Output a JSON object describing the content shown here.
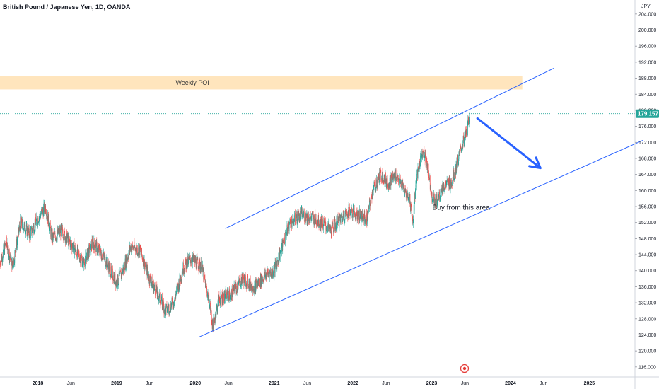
{
  "chart_data": {
    "type": "candlestick",
    "title": "British Pound / Japanese Yen, 1D, OANDA",
    "currency_label": "JPY",
    "ylim": [
      113.5,
      207.5
    ],
    "y_ticks": [
      "204.000",
      "200.000",
      "196.000",
      "192.000",
      "188.000",
      "184.000",
      "180.000",
      "176.000",
      "172.000",
      "168.000",
      "164.000",
      "160.000",
      "156.000",
      "152.000",
      "148.000",
      "144.000",
      "140.000",
      "136.000",
      "132.000",
      "128.000",
      "124.000",
      "120.000",
      "116.000"
    ],
    "x_ticks": [
      {
        "label": "2018",
        "t": 2018.0,
        "year": true
      },
      {
        "label": "Jun",
        "t": 2018.42,
        "year": false
      },
      {
        "label": "2019",
        "t": 2019.0,
        "year": true
      },
      {
        "label": "Jun",
        "t": 2019.42,
        "year": false
      },
      {
        "label": "2020",
        "t": 2020.0,
        "year": true
      },
      {
        "label": "Jun",
        "t": 2020.42,
        "year": false
      },
      {
        "label": "2021",
        "t": 2021.0,
        "year": true
      },
      {
        "label": "Jun",
        "t": 2021.42,
        "year": false
      },
      {
        "label": "2022",
        "t": 2022.0,
        "year": true
      },
      {
        "label": "Jun",
        "t": 2022.42,
        "year": false
      },
      {
        "label": "2023",
        "t": 2023.0,
        "year": true
      },
      {
        "label": "Jun",
        "t": 2023.42,
        "year": false
      },
      {
        "label": "2024",
        "t": 2024.0,
        "year": true
      },
      {
        "label": "Jun",
        "t": 2024.42,
        "year": false
      },
      {
        "label": "2025",
        "t": 2025.0,
        "year": true
      }
    ],
    "xlim": [
      2017.52,
      2025.58
    ],
    "current_price": "179.157",
    "current_price_value": 179.157,
    "price_path": [
      [
        2017.52,
        142.0
      ],
      [
        2017.6,
        147.0
      ],
      [
        2017.68,
        141.0
      ],
      [
        2017.78,
        152.0
      ],
      [
        2017.9,
        149.0
      ],
      [
        2018.0,
        153.0
      ],
      [
        2018.1,
        156.0
      ],
      [
        2018.18,
        148.0
      ],
      [
        2018.3,
        150.0
      ],
      [
        2018.45,
        146.0
      ],
      [
        2018.58,
        142.0
      ],
      [
        2018.7,
        147.0
      ],
      [
        2018.85,
        143.0
      ],
      [
        2019.0,
        137.0
      ],
      [
        2019.06,
        139.0
      ],
      [
        2019.18,
        146.0
      ],
      [
        2019.3,
        145.0
      ],
      [
        2019.42,
        138.0
      ],
      [
        2019.55,
        133.0
      ],
      [
        2019.62,
        130.0
      ],
      [
        2019.72,
        132.0
      ],
      [
        2019.85,
        141.0
      ],
      [
        2019.95,
        143.0
      ],
      [
        2020.08,
        141.0
      ],
      [
        2020.18,
        132.0
      ],
      [
        2020.22,
        126.0
      ],
      [
        2020.3,
        133.0
      ],
      [
        2020.45,
        134.0
      ],
      [
        2020.6,
        138.0
      ],
      [
        2020.75,
        136.0
      ],
      [
        2020.9,
        139.0
      ],
      [
        2021.0,
        140.0
      ],
      [
        2021.1,
        146.0
      ],
      [
        2021.2,
        152.0
      ],
      [
        2021.35,
        154.0
      ],
      [
        2021.5,
        153.0
      ],
      [
        2021.6,
        152.0
      ],
      [
        2021.72,
        150.0
      ],
      [
        2021.85,
        153.0
      ],
      [
        2021.95,
        155.0
      ],
      [
        2022.05,
        154.0
      ],
      [
        2022.18,
        153.0
      ],
      [
        2022.25,
        160.0
      ],
      [
        2022.35,
        164.0
      ],
      [
        2022.45,
        162.0
      ],
      [
        2022.55,
        164.0
      ],
      [
        2022.65,
        160.0
      ],
      [
        2022.72,
        158.0
      ],
      [
        2022.76,
        152.0
      ],
      [
        2022.8,
        162.0
      ],
      [
        2022.88,
        170.0
      ],
      [
        2022.95,
        166.0
      ],
      [
        2023.0,
        159.0
      ],
      [
        2023.05,
        157.0
      ],
      [
        2023.15,
        161.0
      ],
      [
        2023.25,
        162.0
      ],
      [
        2023.3,
        165.0
      ],
      [
        2023.38,
        171.0
      ],
      [
        2023.45,
        175.0
      ],
      [
        2023.48,
        179.157
      ]
    ],
    "drawings": {
      "channel_upper": [
        [
          2020.38,
          150.5
        ],
        [
          2024.55,
          190.5
        ]
      ],
      "channel_lower": [
        [
          2020.05,
          123.5
        ],
        [
          2025.68,
          172.5
        ]
      ],
      "weekly_poi_zone": {
        "t0": 2017.52,
        "t1": 2024.15,
        "y0": 185.2,
        "y1": 188.5
      },
      "arrow": [
        [
          2023.58,
          178.0
        ],
        [
          2024.38,
          165.6
        ]
      ],
      "dotted_price_line": 179.157
    },
    "annotations": {
      "weekly_poi": "Weekly POI",
      "buy_area": "Buy from this area"
    },
    "colors": {
      "up_candle": "#26a69a",
      "down_candle": "#ef5350",
      "channel": "#2962ff",
      "arrow": "#2962ff",
      "poi_zone": "#ffe0b2",
      "price_badge": "#26a69a",
      "event_marker": "#e53935"
    },
    "grid": false
  }
}
